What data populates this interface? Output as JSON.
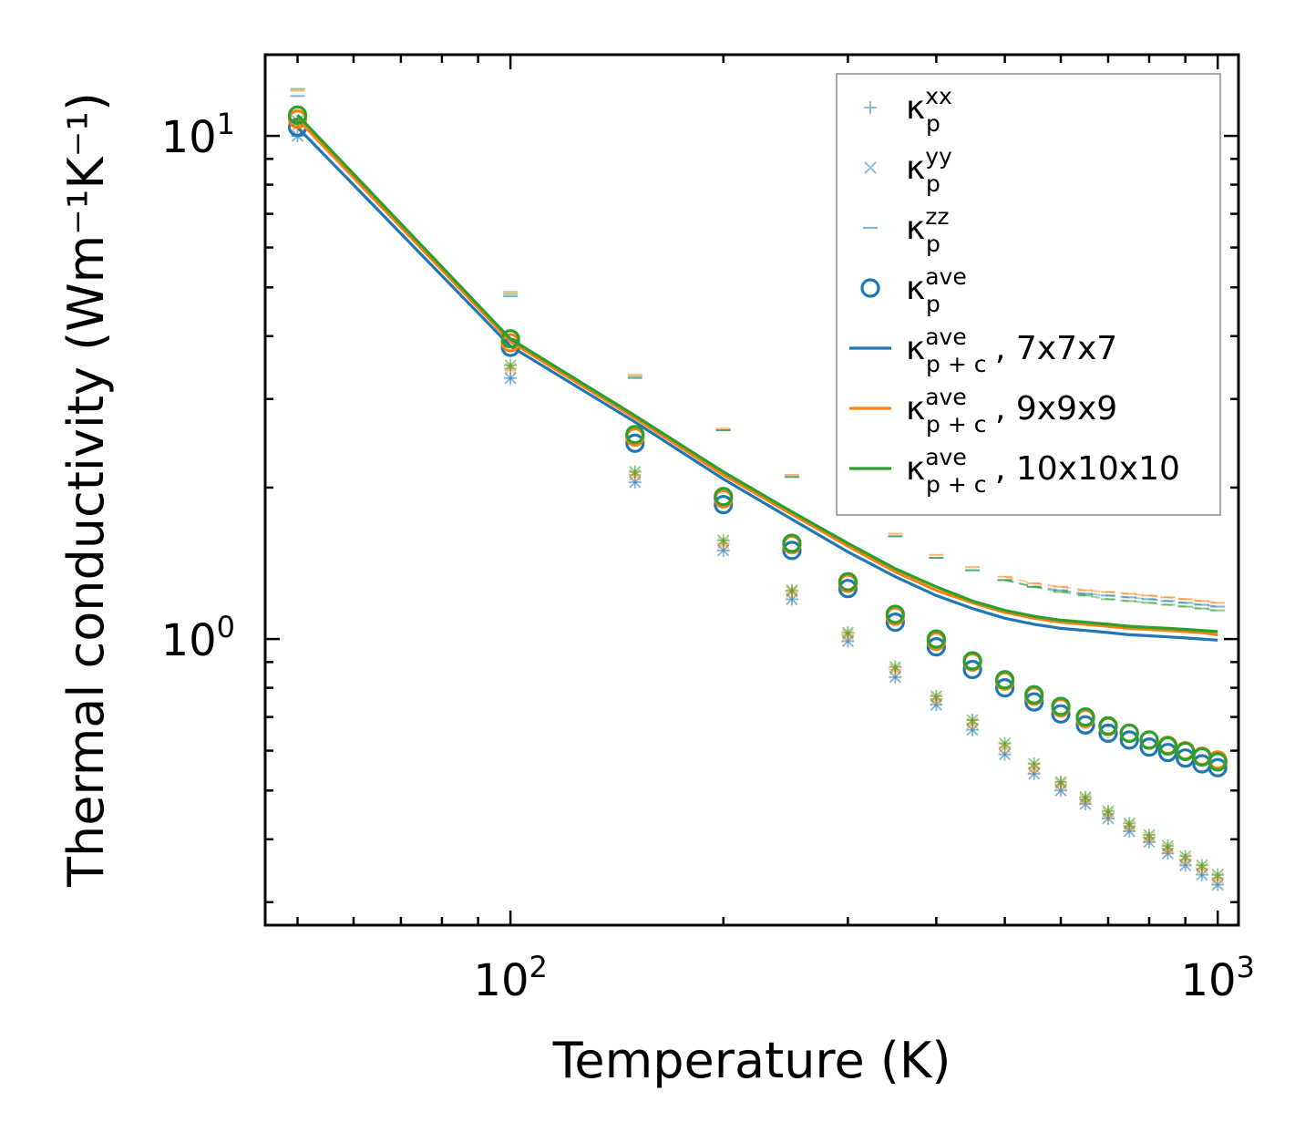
{
  "chart_data": {
    "type": "scatter",
    "scale": {
      "x": "log",
      "y": "log"
    },
    "xlabel": "Temperature (K)",
    "ylabel": "Thermal conductivity (Wm⁻¹K⁻¹)",
    "xlim": [
      45,
      1070
    ],
    "ylim": [
      0.27,
      14.5
    ],
    "x_ticks": [
      {
        "value": 100,
        "base": "10",
        "exp": "2"
      },
      {
        "value": 1000,
        "base": "10",
        "exp": "3"
      }
    ],
    "y_ticks": [
      {
        "value": 1,
        "base": "10",
        "exp": "0"
      },
      {
        "value": 10,
        "base": "10",
        "exp": "1"
      }
    ],
    "colors": {
      "blue": "#1f77b4",
      "orange": "#ff7f0e",
      "green": "#2ca02c"
    },
    "grids": [
      {
        "name": "7x7x7",
        "color": "#1f77b4",
        "x": [
          50,
          100,
          150,
          200,
          250,
          300,
          350,
          400,
          450,
          500,
          550,
          600,
          650,
          700,
          750,
          800,
          850,
          900,
          950,
          1000
        ],
        "kxx": [
          10.0,
          3.3,
          2.05,
          1.5,
          1.2,
          0.99,
          0.84,
          0.74,
          0.66,
          0.59,
          0.54,
          0.5,
          0.47,
          0.44,
          0.415,
          0.395,
          0.375,
          0.355,
          0.34,
          0.325
        ],
        "kyy": [
          10.0,
          3.3,
          2.05,
          1.5,
          1.2,
          0.99,
          0.84,
          0.74,
          0.66,
          0.59,
          0.54,
          0.5,
          0.47,
          0.44,
          0.415,
          0.395,
          0.375,
          0.355,
          0.34,
          0.325
        ],
        "kzz": [
          12.0,
          4.8,
          3.3,
          2.6,
          2.1,
          1.8,
          1.6,
          1.45,
          1.37,
          1.31,
          1.27,
          1.25,
          1.23,
          1.22,
          1.21,
          1.2,
          1.19,
          1.18,
          1.17,
          1.16
        ],
        "kave": [
          10.4,
          3.8,
          2.45,
          1.85,
          1.5,
          1.26,
          1.08,
          0.965,
          0.87,
          0.8,
          0.75,
          0.71,
          0.675,
          0.65,
          0.63,
          0.61,
          0.595,
          0.58,
          0.565,
          0.555
        ],
        "kpc": [
          10.4,
          3.82,
          2.7,
          2.08,
          1.73,
          1.49,
          1.33,
          1.22,
          1.15,
          1.1,
          1.07,
          1.05,
          1.04,
          1.03,
          1.02,
          1.015,
          1.01,
          1.005,
          1.0,
          0.995
        ]
      },
      {
        "name": "9x9x9",
        "color": "#ff7f0e",
        "x": [
          50,
          100,
          150,
          200,
          250,
          300,
          350,
          400,
          450,
          500,
          550,
          600,
          650,
          700,
          750,
          800,
          850,
          900,
          950,
          1000
        ],
        "kxx": [
          10.5,
          3.45,
          2.12,
          1.55,
          1.24,
          1.02,
          0.87,
          0.76,
          0.68,
          0.61,
          0.555,
          0.515,
          0.48,
          0.45,
          0.425,
          0.403,
          0.383,
          0.365,
          0.35,
          0.335
        ],
        "kyy": [
          10.5,
          3.45,
          2.12,
          1.55,
          1.24,
          1.02,
          0.87,
          0.76,
          0.68,
          0.61,
          0.555,
          0.515,
          0.48,
          0.45,
          0.425,
          0.403,
          0.383,
          0.365,
          0.35,
          0.335
        ],
        "kzz": [
          12.3,
          4.9,
          3.35,
          2.62,
          2.12,
          1.82,
          1.62,
          1.47,
          1.39,
          1.33,
          1.29,
          1.27,
          1.25,
          1.24,
          1.23,
          1.22,
          1.21,
          1.2,
          1.19,
          1.18
        ],
        "kave": [
          10.8,
          3.88,
          2.52,
          1.9,
          1.54,
          1.29,
          1.11,
          0.99,
          0.9,
          0.825,
          0.77,
          0.73,
          0.695,
          0.67,
          0.65,
          0.63,
          0.615,
          0.6,
          0.585,
          0.575
        ],
        "kpc": [
          10.8,
          3.9,
          2.75,
          2.12,
          1.77,
          1.53,
          1.36,
          1.25,
          1.18,
          1.13,
          1.1,
          1.08,
          1.07,
          1.06,
          1.05,
          1.045,
          1.04,
          1.035,
          1.03,
          1.02
        ]
      },
      {
        "name": "10x10x10",
        "color": "#2ca02c",
        "x": [
          50,
          100,
          150,
          200,
          250,
          300,
          350,
          400,
          450,
          500,
          550,
          600,
          650,
          700,
          750,
          800,
          850,
          900,
          950,
          1000
        ],
        "kxx": [
          10.7,
          3.5,
          2.15,
          1.57,
          1.25,
          1.03,
          0.88,
          0.77,
          0.69,
          0.62,
          0.565,
          0.52,
          0.485,
          0.455,
          0.43,
          0.408,
          0.388,
          0.37,
          0.355,
          0.34
        ],
        "kyy": [
          10.7,
          3.5,
          2.15,
          1.57,
          1.25,
          1.03,
          0.88,
          0.77,
          0.69,
          0.62,
          0.565,
          0.52,
          0.485,
          0.455,
          0.43,
          0.408,
          0.388,
          0.37,
          0.355,
          0.34
        ],
        "kzz": [
          12.4,
          4.85,
          3.32,
          2.6,
          2.1,
          1.8,
          1.6,
          1.45,
          1.37,
          1.31,
          1.27,
          1.24,
          1.22,
          1.2,
          1.19,
          1.18,
          1.17,
          1.16,
          1.15,
          1.14
        ],
        "kave": [
          11.0,
          3.95,
          2.55,
          1.92,
          1.55,
          1.3,
          1.12,
          1.0,
          0.905,
          0.83,
          0.775,
          0.735,
          0.7,
          0.672,
          0.65,
          0.63,
          0.613,
          0.598,
          0.583,
          0.57
        ],
        "kpc": [
          11.0,
          3.95,
          2.78,
          2.15,
          1.79,
          1.55,
          1.38,
          1.27,
          1.19,
          1.14,
          1.11,
          1.09,
          1.08,
          1.07,
          1.06,
          1.055,
          1.05,
          1.045,
          1.04,
          1.035
        ]
      }
    ],
    "legend": {
      "position": "top-right",
      "entries": [
        {
          "marker": "plus",
          "sym": "κ",
          "sub": "p",
          "sup": "xx",
          "tail": ""
        },
        {
          "marker": "cross",
          "sym": "κ",
          "sub": "p",
          "sup": "yy",
          "tail": ""
        },
        {
          "marker": "dash",
          "sym": "κ",
          "sub": "p",
          "sup": "zz",
          "tail": ""
        },
        {
          "marker": "circle",
          "sym": "κ",
          "sub": "p",
          "sup": "ave",
          "tail": ""
        },
        {
          "marker": "line-blue",
          "sym": "κ",
          "sub": "p + c",
          "sup": "ave",
          "tail": ", 7x7x7"
        },
        {
          "marker": "line-orange",
          "sym": "κ",
          "sub": "p + c",
          "sup": "ave",
          "tail": ", 9x9x9"
        },
        {
          "marker": "line-green",
          "sym": "κ",
          "sub": "p + c",
          "sup": "ave",
          "tail": ", 10x10x10"
        }
      ]
    }
  }
}
